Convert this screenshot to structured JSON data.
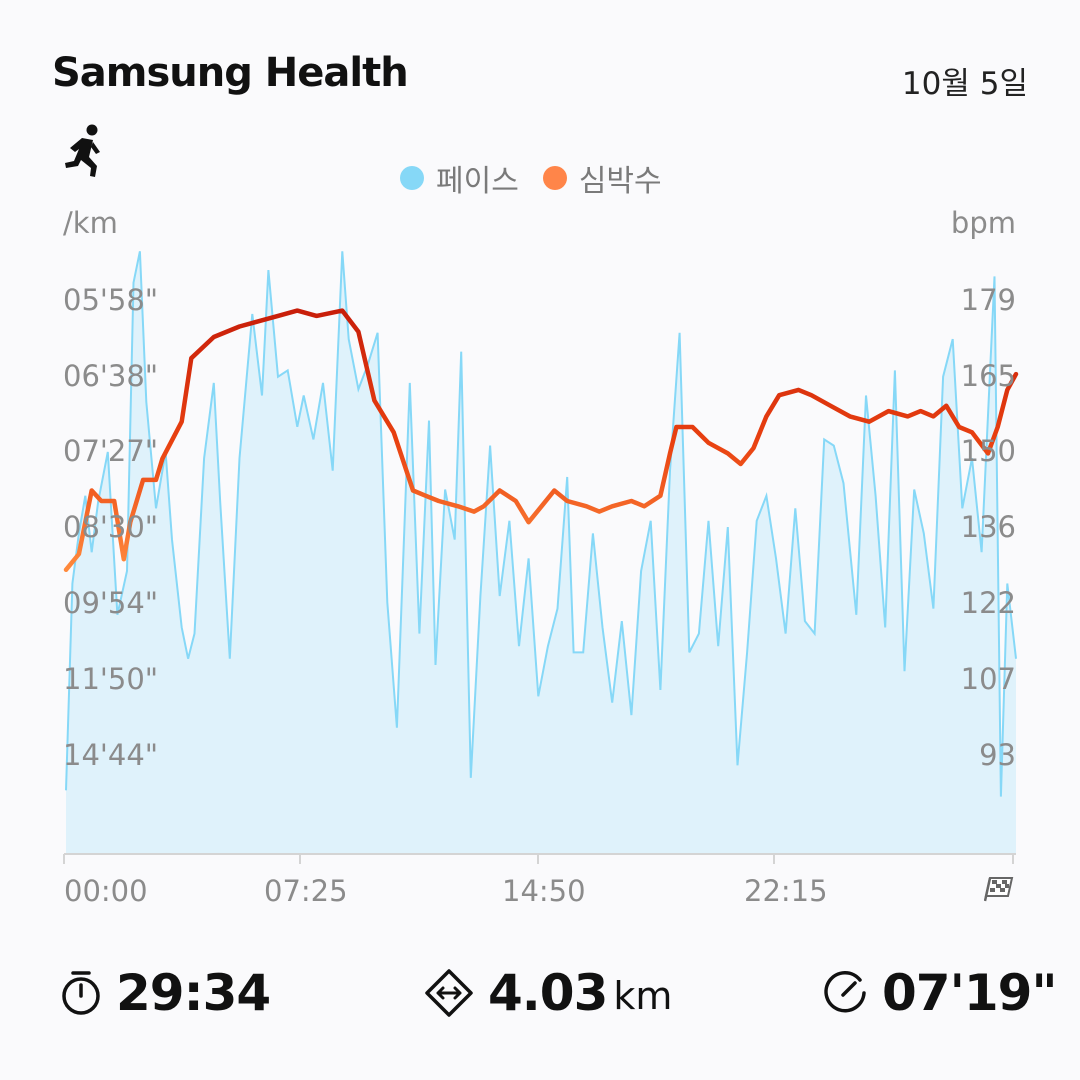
{
  "header": {
    "brand": "Samsung Health",
    "date": "10월 5일",
    "activity_icon": "running-person-icon"
  },
  "legend": [
    {
      "label": "페이스",
      "color": "#86d8f7"
    },
    {
      "label": "심박수",
      "color": "#ff8549"
    }
  ],
  "axes": {
    "left_unit": "/km",
    "right_unit": "bpm",
    "left_ticks": [
      "05'58\"",
      "06'38\"",
      "07'27\"",
      "08'30\"",
      "09'54\"",
      "11'50\"",
      "14'44\""
    ],
    "right_ticks": [
      "179",
      "165",
      "150",
      "136",
      "122",
      "107",
      "93"
    ],
    "x_ticks": [
      "00:00",
      "07:25",
      "14:50",
      "22:15"
    ],
    "x_end_icon": "checkered-flag-icon"
  },
  "chart_data": {
    "type": "area",
    "x_unit": "minutes",
    "x_range": [
      0,
      29.57
    ],
    "series": [
      {
        "name": "페이스",
        "axis": "left",
        "chart_kind": "area",
        "color": "#86d8f7",
        "points": [
          [
            0,
            1.0
          ],
          [
            0.2,
            4.3
          ],
          [
            0.4,
            5.1
          ],
          [
            0.6,
            5.7
          ],
          [
            0.8,
            4.8
          ],
          [
            1.0,
            5.6
          ],
          [
            1.3,
            6.4
          ],
          [
            1.6,
            3.8
          ],
          [
            1.9,
            4.5
          ],
          [
            2.1,
            9.1
          ],
          [
            2.3,
            9.6
          ],
          [
            2.5,
            7.2
          ],
          [
            2.8,
            5.5
          ],
          [
            3.1,
            6.4
          ],
          [
            3.3,
            5.0
          ],
          [
            3.6,
            3.6
          ],
          [
            3.8,
            3.1
          ],
          [
            4.0,
            3.5
          ],
          [
            4.3,
            6.3
          ],
          [
            4.6,
            7.5
          ],
          [
            4.8,
            5.6
          ],
          [
            5.1,
            3.1
          ],
          [
            5.4,
            6.3
          ],
          [
            5.8,
            8.6
          ],
          [
            6.1,
            7.3
          ],
          [
            6.3,
            9.3
          ],
          [
            6.6,
            7.6
          ],
          [
            6.9,
            7.7
          ],
          [
            7.2,
            6.8
          ],
          [
            7.4,
            7.3
          ],
          [
            7.7,
            6.6
          ],
          [
            8.0,
            7.5
          ],
          [
            8.3,
            6.1
          ],
          [
            8.6,
            9.6
          ],
          [
            8.8,
            8.2
          ],
          [
            9.1,
            7.4
          ],
          [
            9.4,
            7.8
          ],
          [
            9.7,
            8.3
          ],
          [
            10.0,
            4.0
          ],
          [
            10.3,
            2.0
          ],
          [
            10.7,
            7.5
          ],
          [
            11.0,
            3.5
          ],
          [
            11.3,
            6.9
          ],
          [
            11.5,
            3.0
          ],
          [
            11.8,
            5.8
          ],
          [
            12.1,
            5.0
          ],
          [
            12.3,
            8.0
          ],
          [
            12.6,
            1.2
          ],
          [
            12.9,
            4.1
          ],
          [
            13.2,
            6.5
          ],
          [
            13.5,
            4.1
          ],
          [
            13.8,
            5.3
          ],
          [
            14.1,
            3.3
          ],
          [
            14.4,
            4.7
          ],
          [
            14.7,
            2.5
          ],
          [
            15.0,
            3.3
          ],
          [
            15.3,
            3.9
          ],
          [
            15.6,
            6.0
          ],
          [
            15.8,
            3.2
          ],
          [
            16.1,
            3.2
          ],
          [
            16.4,
            5.1
          ],
          [
            16.7,
            3.6
          ],
          [
            17.0,
            2.4
          ],
          [
            17.3,
            3.7
          ],
          [
            17.6,
            2.2
          ],
          [
            17.9,
            4.5
          ],
          [
            18.2,
            5.3
          ],
          [
            18.5,
            2.6
          ],
          [
            18.8,
            6.1
          ],
          [
            19.1,
            8.3
          ],
          [
            19.4,
            3.2
          ],
          [
            19.7,
            3.5
          ],
          [
            20.0,
            5.3
          ],
          [
            20.3,
            3.3
          ],
          [
            20.6,
            5.2
          ],
          [
            20.9,
            1.4
          ],
          [
            21.2,
            3.2
          ],
          [
            21.5,
            5.3
          ],
          [
            21.8,
            5.7
          ],
          [
            22.1,
            4.7
          ],
          [
            22.4,
            3.5
          ],
          [
            22.7,
            5.5
          ],
          [
            23.0,
            3.7
          ],
          [
            23.3,
            3.5
          ],
          [
            23.6,
            6.6
          ],
          [
            23.9,
            6.5
          ],
          [
            24.2,
            5.9
          ],
          [
            24.6,
            3.8
          ],
          [
            24.9,
            7.3
          ],
          [
            25.2,
            5.7
          ],
          [
            25.5,
            3.6
          ],
          [
            25.8,
            7.7
          ],
          [
            26.1,
            2.9
          ],
          [
            26.4,
            5.8
          ],
          [
            26.7,
            5.1
          ],
          [
            27.0,
            3.9
          ],
          [
            27.3,
            7.6
          ],
          [
            27.6,
            8.2
          ],
          [
            27.9,
            5.5
          ],
          [
            28.2,
            6.3
          ],
          [
            28.5,
            4.8
          ],
          [
            28.9,
            9.2
          ],
          [
            29.1,
            0.9
          ],
          [
            29.3,
            4.3
          ],
          [
            29.57,
            3.1
          ]
        ]
      },
      {
        "name": "심박수",
        "axis": "right",
        "chart_kind": "line",
        "color": "#e53a12",
        "points": [
          [
            0,
            128
          ],
          [
            0.4,
            131
          ],
          [
            0.8,
            143
          ],
          [
            1.1,
            141
          ],
          [
            1.5,
            141
          ],
          [
            1.8,
            130
          ],
          [
            2.0,
            137
          ],
          [
            2.4,
            145
          ],
          [
            2.8,
            145
          ],
          [
            3.0,
            149
          ],
          [
            3.6,
            156
          ],
          [
            3.9,
            168
          ],
          [
            4.6,
            172
          ],
          [
            5.4,
            174
          ],
          [
            6.0,
            175
          ],
          [
            6.6,
            176
          ],
          [
            7.2,
            177
          ],
          [
            7.8,
            176
          ],
          [
            8.6,
            177
          ],
          [
            9.1,
            173
          ],
          [
            9.6,
            160
          ],
          [
            10.2,
            154
          ],
          [
            10.8,
            143
          ],
          [
            11.2,
            142
          ],
          [
            11.6,
            141
          ],
          [
            12.2,
            140
          ],
          [
            12.7,
            139
          ],
          [
            13.0,
            140
          ],
          [
            13.5,
            143
          ],
          [
            14.0,
            141
          ],
          [
            14.4,
            137
          ],
          [
            14.8,
            140
          ],
          [
            15.2,
            143
          ],
          [
            15.6,
            141
          ],
          [
            16.2,
            140
          ],
          [
            16.6,
            139
          ],
          [
            17.0,
            140
          ],
          [
            17.6,
            141
          ],
          [
            18.0,
            140
          ],
          [
            18.5,
            142
          ],
          [
            18.8,
            150
          ],
          [
            19.0,
            155
          ],
          [
            19.5,
            155
          ],
          [
            20.0,
            152
          ],
          [
            20.6,
            150
          ],
          [
            21.0,
            148
          ],
          [
            21.4,
            151
          ],
          [
            21.8,
            157
          ],
          [
            22.2,
            161
          ],
          [
            22.8,
            162
          ],
          [
            23.2,
            161
          ],
          [
            23.8,
            159
          ],
          [
            24.4,
            157
          ],
          [
            25.0,
            156
          ],
          [
            25.6,
            158
          ],
          [
            26.2,
            157
          ],
          [
            26.6,
            158
          ],
          [
            27.0,
            157
          ],
          [
            27.4,
            159
          ],
          [
            27.8,
            155
          ],
          [
            28.2,
            154
          ],
          [
            28.7,
            150
          ],
          [
            29.0,
            155
          ],
          [
            29.3,
            162
          ],
          [
            29.57,
            165
          ]
        ]
      }
    ]
  },
  "summary": [
    {
      "icon": "stopwatch-icon",
      "value": "29:34",
      "unit": ""
    },
    {
      "icon": "distance-icon",
      "value": "4.03",
      "unit": "km"
    },
    {
      "icon": "pace-gauge-icon",
      "value": "07'19\"",
      "unit": ""
    }
  ]
}
